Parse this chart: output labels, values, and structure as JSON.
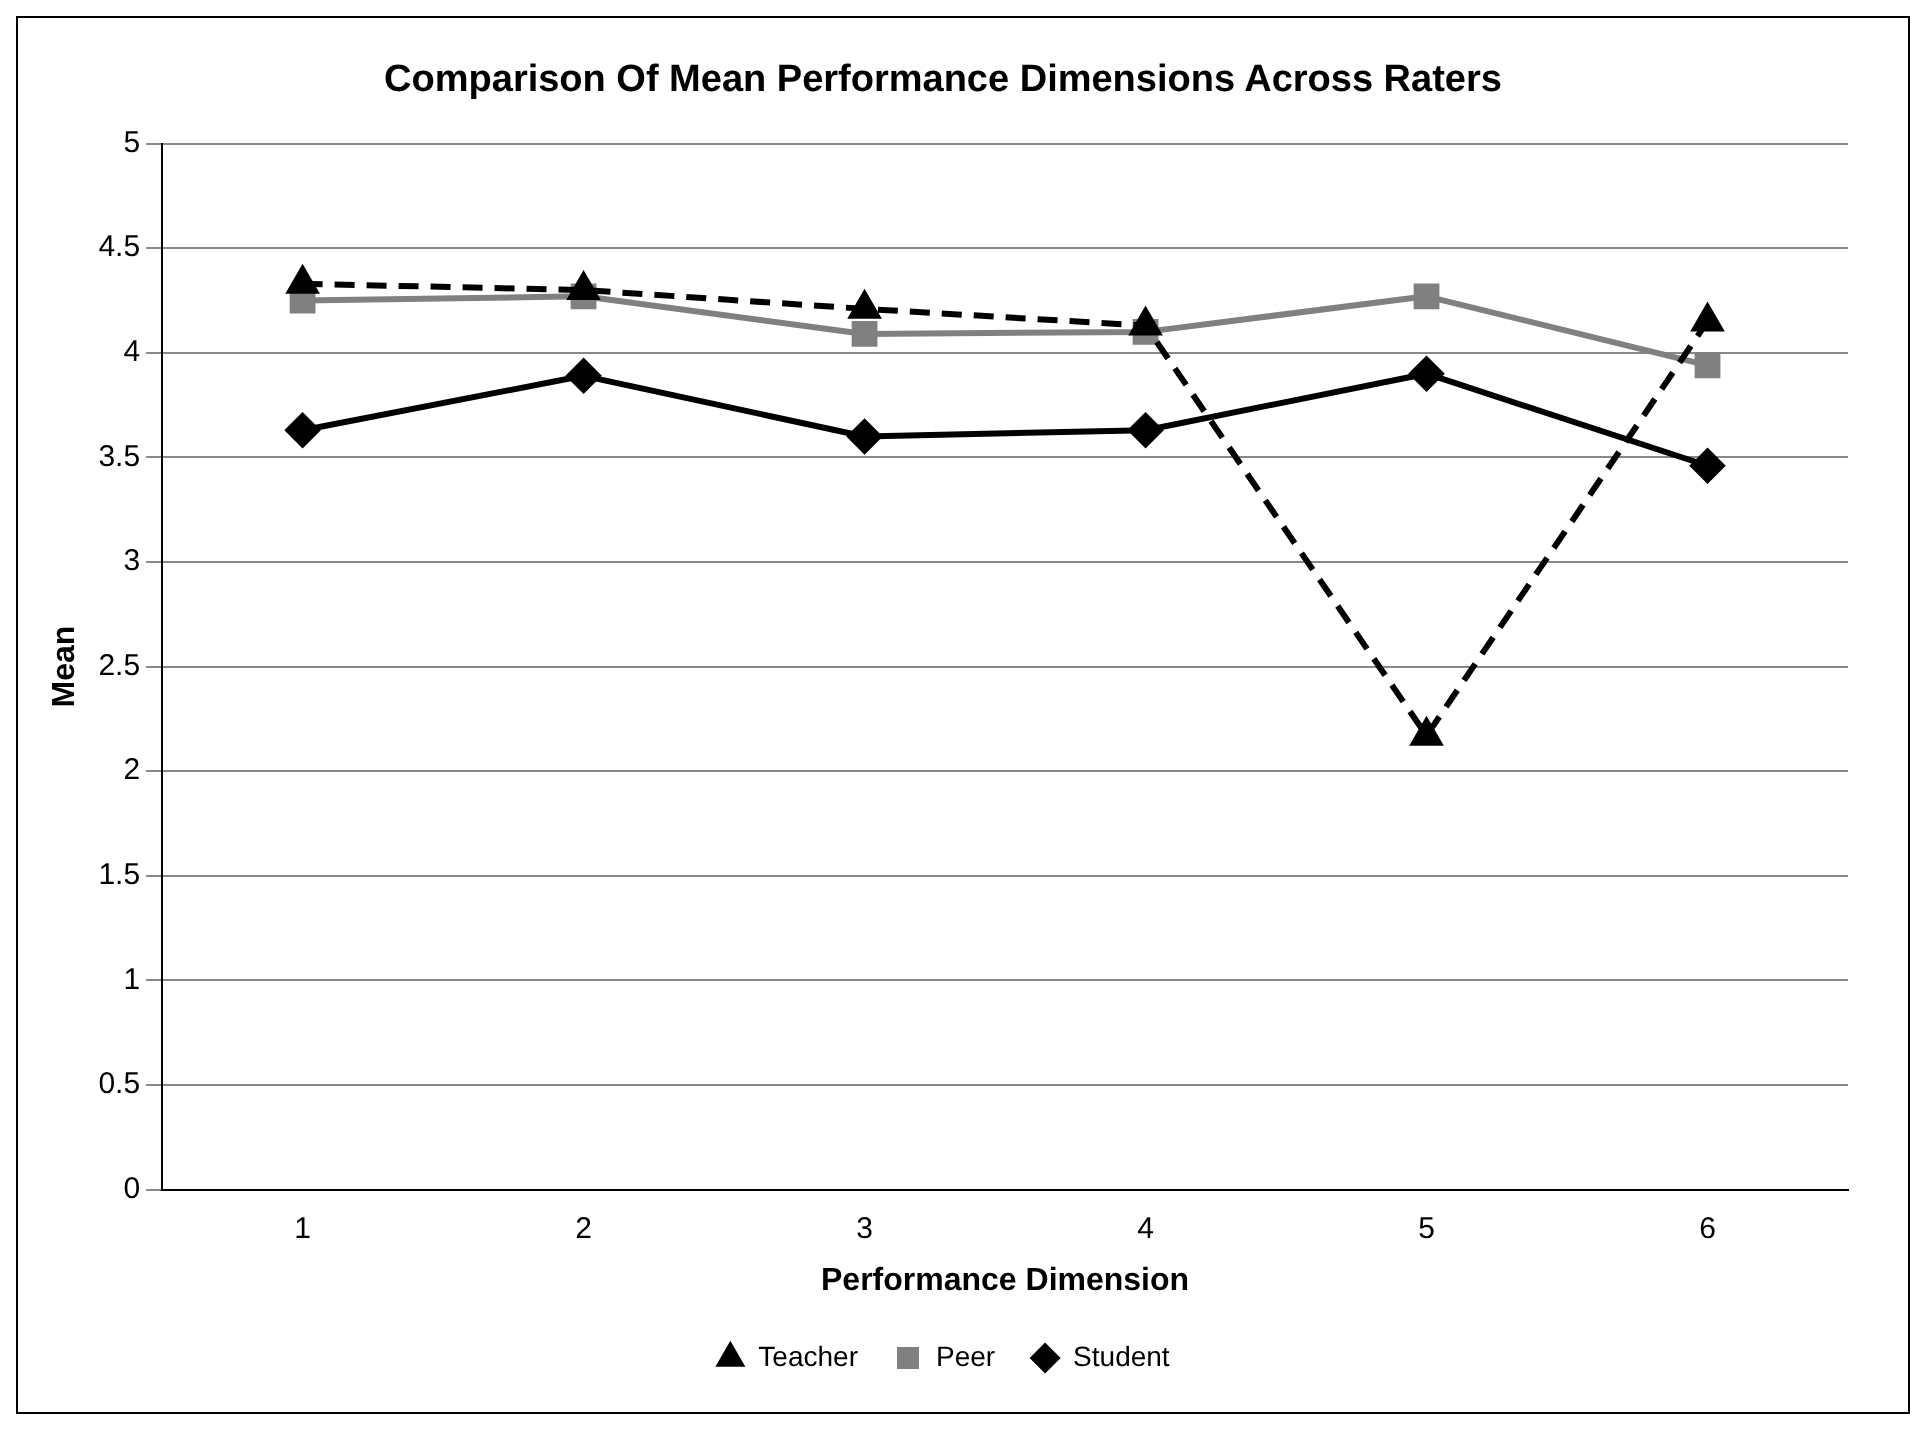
{
  "chart_data": {
    "type": "line",
    "title": "Comparison Of Mean Performance Dimensions Across Raters",
    "xlabel": "Performance Dimension",
    "ylabel": "Mean",
    "categories": [
      "1",
      "2",
      "3",
      "4",
      "5",
      "6"
    ],
    "series": [
      {
        "name": "Student",
        "color": "#000000",
        "marker": "diamond",
        "line_style": "solid",
        "values": [
          3.63,
          3.89,
          3.6,
          3.63,
          3.9,
          3.46
        ]
      },
      {
        "name": "Peer",
        "color": "#808080",
        "marker": "square",
        "line_style": "solid",
        "values": [
          4.25,
          4.27,
          4.09,
          4.1,
          4.27,
          3.94
        ]
      },
      {
        "name": "Teacher",
        "color": "#000000",
        "marker": "triangle",
        "line_style": "dashed",
        "values": [
          4.33,
          4.3,
          4.21,
          4.13,
          2.17,
          4.15
        ]
      }
    ],
    "ylim": [
      0,
      5
    ],
    "yticks": [
      0,
      0.5,
      1,
      1.5,
      2,
      2.5,
      3,
      3.5,
      4,
      4.5,
      5
    ],
    "grid": "y",
    "legend": "bottom"
  }
}
